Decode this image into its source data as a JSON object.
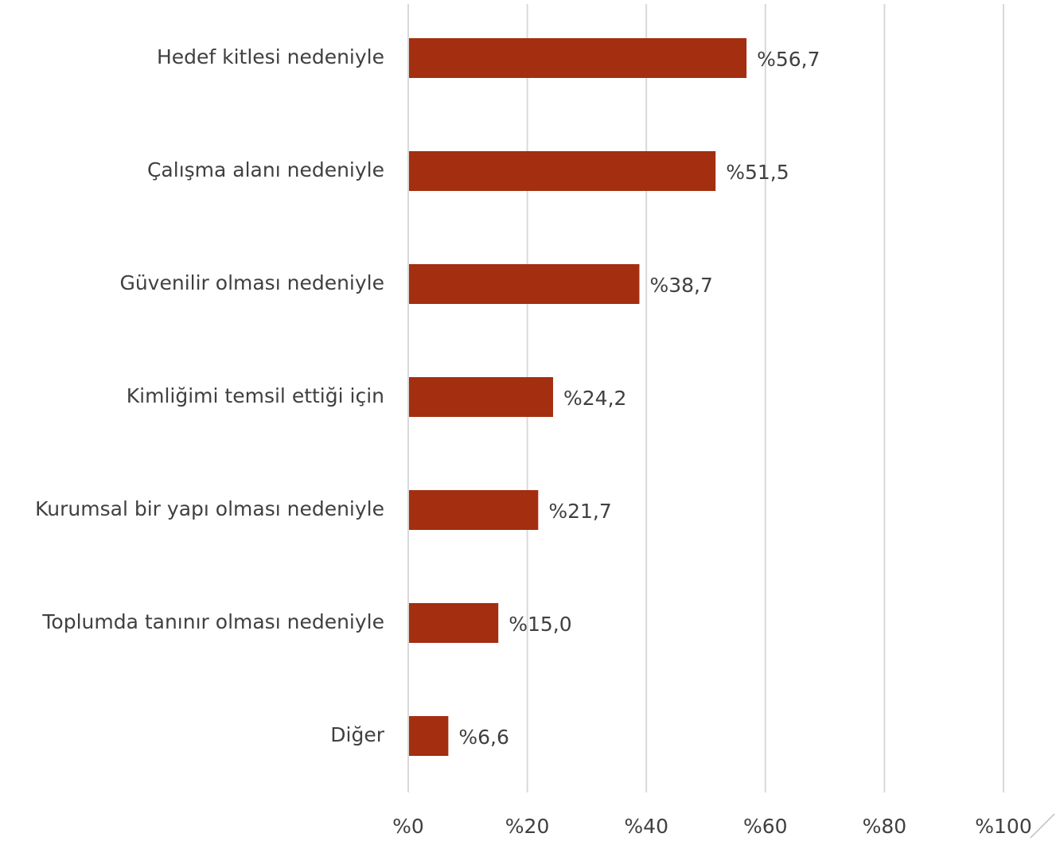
{
  "chart_data": {
    "type": "bar",
    "orientation": "horizontal",
    "categories": [
      "Hedef kitlesi nedeniyle",
      "Çalışma alanı nedeniyle",
      "Güvenilir olması nedeniyle",
      "Kimliğimi temsil ettiği için",
      "Kurumsal bir yapı olması nedeniyle",
      "Toplumda tanınır olması nedeniyle",
      "Diğer"
    ],
    "values": [
      56.7,
      51.5,
      38.7,
      24.2,
      21.7,
      15.0,
      6.6
    ],
    "value_labels": [
      "%56,7",
      "%51,5",
      "%38,7",
      "%24,2",
      "%21,7",
      "%15,0",
      "%6,6"
    ],
    "color": "#a32e10",
    "xlim": [
      0,
      100
    ],
    "xticks": [
      {
        "value": 0,
        "label": "%0"
      },
      {
        "value": 20,
        "label": "%20"
      },
      {
        "value": 40,
        "label": "%40"
      },
      {
        "value": 60,
        "label": "%60"
      },
      {
        "value": 80,
        "label": "%80"
      },
      {
        "value": 100,
        "label": "%100"
      }
    ],
    "grid": true
  }
}
